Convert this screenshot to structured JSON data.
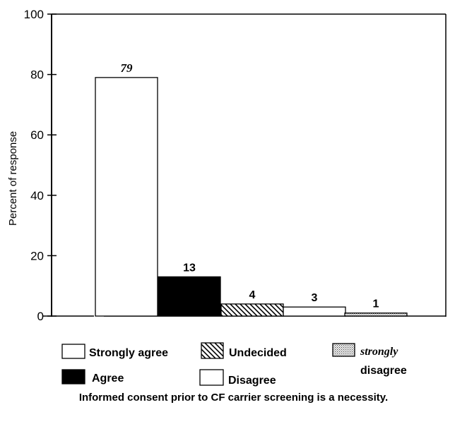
{
  "chart_data": {
    "type": "bar",
    "categories": [
      "Strongly agree",
      "Agree",
      "Undecided",
      "Disagree",
      "strongly disagree"
    ],
    "values": [
      79,
      13,
      4,
      3,
      1
    ],
    "value_labels": [
      "79",
      "13",
      "4",
      "3",
      "1"
    ],
    "ylabel": "Percent of response",
    "xlabel": "",
    "ylim": [
      0,
      100
    ],
    "yticks": [
      "0",
      "20",
      "40",
      "60",
      "80",
      "100"
    ],
    "grid": false,
    "legend_placement": "bottom",
    "fills": [
      "white",
      "black",
      "diagonal-hatch",
      "white",
      "dotted"
    ],
    "legend": [
      {
        "label": "Strongly agree",
        "fill": "white"
      },
      {
        "label": "Agree",
        "fill": "black"
      },
      {
        "label": "Undecided",
        "fill": "diagonal-hatch"
      },
      {
        "label": "Disagree",
        "fill": "white"
      },
      {
        "label_line1": "strongly",
        "label_line2": "disagree",
        "fill": "dotted"
      }
    ],
    "caption": "Informed consent prior to CF carrier screening is a necessity."
  }
}
